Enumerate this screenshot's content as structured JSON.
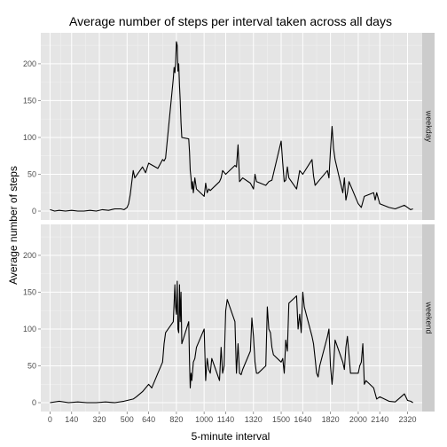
{
  "chart_data": {
    "type": "line",
    "title": "Average number of steps per interval taken across all days",
    "xlabel": "5-minute interval",
    "ylabel": "Average number of steps",
    "xlim": [
      -60,
      2415
    ],
    "ylim": [
      -12,
      242
    ],
    "x_ticks": [
      0,
      140,
      320,
      500,
      640,
      820,
      1000,
      1140,
      1320,
      1500,
      1640,
      1820,
      2000,
      2140,
      2320
    ],
    "y_ticks": [
      0,
      50,
      100,
      150,
      200
    ],
    "grid": true,
    "legend": "none",
    "line_color": "#000000",
    "panel_bg": "#e5e5e5",
    "strip_bg": "#cccccc",
    "panels": [
      {
        "facet": "weekday",
        "x": [
          0,
          30,
          60,
          100,
          140,
          180,
          220,
          260,
          300,
          340,
          380,
          420,
          460,
          480,
          500,
          510,
          520,
          540,
          550,
          600,
          620,
          640,
          700,
          730,
          740,
          750,
          800,
          805,
          810,
          815,
          820,
          825,
          830,
          835,
          840,
          845,
          850,
          855,
          900,
          905,
          910,
          915,
          920,
          925,
          930,
          935,
          940,
          950,
          1000,
          1010,
          1020,
          1030,
          1040,
          1100,
          1110,
          1120,
          1140,
          1200,
          1210,
          1220,
          1230,
          1250,
          1300,
          1320,
          1330,
          1340,
          1400,
          1420,
          1440,
          1500,
          1510,
          1520,
          1530,
          1540,
          1550,
          1600,
          1620,
          1640,
          1700,
          1710,
          1720,
          1740,
          1800,
          1810,
          1820,
          1830,
          1840,
          1850,
          1900,
          1910,
          1920,
          1930,
          1940,
          2000,
          2020,
          2040,
          2100,
          2110,
          2120,
          2140,
          2200,
          2240,
          2300,
          2340,
          2355
        ],
        "values": [
          2,
          0,
          1,
          0,
          1,
          0,
          0,
          1,
          0,
          2,
          1,
          3,
          3,
          2,
          5,
          10,
          22,
          55,
          45,
          60,
          52,
          65,
          58,
          70,
          68,
          72,
          180,
          195,
          188,
          200,
          230,
          225,
          190,
          200,
          170,
          150,
          120,
          100,
          98,
          80,
          55,
          45,
          30,
          40,
          25,
          35,
          45,
          30,
          20,
          38,
          25,
          30,
          28,
          40,
          45,
          55,
          50,
          62,
          60,
          90,
          40,
          45,
          38,
          30,
          50,
          40,
          35,
          40,
          42,
          95,
          65,
          40,
          42,
          60,
          45,
          30,
          55,
          50,
          70,
          48,
          35,
          40,
          55,
          45,
          82,
          115,
          85,
          70,
          25,
          45,
          15,
          25,
          40,
          10,
          5,
          20,
          25,
          15,
          25,
          10,
          5,
          3,
          8,
          2,
          3
        ],
        "value_note": "y values in steps"
      },
      {
        "facet": "weekend",
        "x": [
          0,
          60,
          120,
          180,
          240,
          300,
          360,
          420,
          480,
          540,
          560,
          600,
          640,
          660,
          700,
          730,
          740,
          750,
          800,
          805,
          810,
          815,
          820,
          825,
          830,
          835,
          840,
          845,
          850,
          855,
          900,
          905,
          910,
          915,
          920,
          930,
          940,
          950,
          1000,
          1010,
          1020,
          1030,
          1040,
          1050,
          1100,
          1110,
          1120,
          1130,
          1140,
          1150,
          1200,
          1210,
          1220,
          1230,
          1240,
          1250,
          1300,
          1310,
          1320,
          1330,
          1340,
          1350,
          1400,
          1410,
          1420,
          1430,
          1440,
          1450,
          1500,
          1510,
          1520,
          1530,
          1540,
          1550,
          1600,
          1610,
          1620,
          1630,
          1640,
          1650,
          1700,
          1710,
          1720,
          1730,
          1740,
          1750,
          1800,
          1810,
          1820,
          1830,
          1840,
          1850,
          1900,
          1910,
          1920,
          1930,
          1940,
          1950,
          2000,
          2010,
          2020,
          2030,
          2040,
          2050,
          2100,
          2120,
          2140,
          2200,
          2240,
          2300,
          2320,
          2340,
          2355
        ],
        "values": [
          0,
          2,
          0,
          1,
          0,
          0,
          1,
          0,
          2,
          5,
          8,
          15,
          25,
          20,
          40,
          55,
          80,
          95,
          110,
          135,
          160,
          130,
          120,
          165,
          100,
          95,
          160,
          110,
          150,
          80,
          110,
          55,
          20,
          40,
          30,
          55,
          60,
          75,
          100,
          30,
          60,
          45,
          40,
          60,
          30,
          75,
          40,
          50,
          125,
          140,
          110,
          40,
          80,
          40,
          38,
          45,
          70,
          115,
          90,
          55,
          40,
          40,
          50,
          130,
          100,
          95,
          75,
          65,
          55,
          60,
          40,
          85,
          70,
          135,
          145,
          100,
          120,
          95,
          150,
          130,
          90,
          80,
          60,
          40,
          35,
          50,
          90,
          100,
          50,
          25,
          50,
          85,
          55,
          45,
          75,
          90,
          65,
          40,
          40,
          50,
          55,
          80,
          25,
          30,
          20,
          5,
          8,
          2,
          1,
          12,
          3,
          2,
          0
        ],
        "value_note": "y values in steps"
      }
    ]
  }
}
